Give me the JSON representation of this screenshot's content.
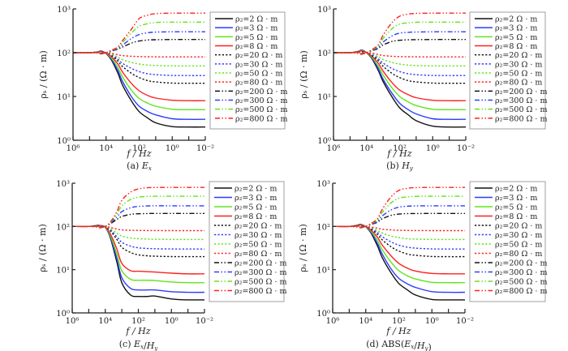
{
  "colors": {
    "black": "#111111",
    "blue": "#2a3cff",
    "green": "#5fe51c",
    "red": "#ff2020"
  },
  "shared": {
    "type": "line",
    "x_scale": "log, reversed",
    "y_scale": "log",
    "xlim": [
      1000000,
      0.01
    ],
    "ylim": [
      1,
      1000
    ],
    "xlabel": "f / Hz",
    "ylabel": "ρₛ / (Ω · m)",
    "xtick_values": [
      1000000,
      10000,
      100,
      1,
      0.01
    ],
    "xtick_labels": [
      "10⁶",
      "10⁴",
      "10²",
      "10⁰",
      "10⁻²"
    ],
    "ytick_values": [
      1,
      10,
      100,
      1000
    ],
    "ytick_labels": [
      "10⁰",
      "10¹",
      "10²",
      "10³"
    ],
    "grid": false,
    "legend_placement": "right, outside",
    "x": [
      1000000,
      100000,
      30000,
      20000,
      10000,
      5000,
      2000,
      1000,
      300,
      100,
      30,
      10,
      1,
      0.1,
      0.01
    ],
    "series_meta": [
      {
        "name": "ρ₂=2 Ω · m",
        "color": "black",
        "style": "solid"
      },
      {
        "name": "ρ₂=3 Ω · m",
        "color": "blue",
        "style": "solid"
      },
      {
        "name": "ρ₂=5 Ω · m",
        "color": "green",
        "style": "solid"
      },
      {
        "name": "ρ₂=8 Ω · m",
        "color": "red",
        "style": "solid"
      },
      {
        "name": "ρ₂=20 Ω · m",
        "color": "black",
        "style": "dotted"
      },
      {
        "name": "ρ₂=30 Ω · m",
        "color": "blue",
        "style": "dotted"
      },
      {
        "name": "ρ₂=50 Ω · m",
        "color": "green",
        "style": "dotted"
      },
      {
        "name": "ρ₂=80 Ω · m",
        "color": "red",
        "style": "dotted"
      },
      {
        "name": "ρ₂=200 Ω · m",
        "color": "black",
        "style": "dash-dot-dot"
      },
      {
        "name": "ρ₂=300 Ω · m",
        "color": "blue",
        "style": "dash-dot-dot"
      },
      {
        "name": "ρ₂=500 Ω · m",
        "color": "green",
        "style": "dash-dot-dot"
      },
      {
        "name": "ρ₂=800 Ω · m",
        "color": "red",
        "style": "dash-dot-dot"
      }
    ]
  },
  "chart_data": [
    {
      "type": "line",
      "caption": "(a) Ex",
      "series": [
        {
          "name": "ρ₂=2 Ω · m",
          "values": [
            100,
            100,
            105,
            110,
            95,
            70,
            35,
            18,
            8,
            4.5,
            3.2,
            2.5,
            2.05,
            2,
            2
          ]
        },
        {
          "name": "ρ₂=3 Ω · m",
          "values": [
            100,
            100,
            105,
            110,
            96,
            73,
            40,
            22,
            10,
            6,
            4.5,
            3.8,
            3.1,
            3,
            3
          ]
        },
        {
          "name": "ρ₂=5 Ω · m",
          "values": [
            100,
            100,
            104,
            108,
            97,
            77,
            47,
            28,
            14,
            9,
            7,
            6,
            5.1,
            5,
            5
          ]
        },
        {
          "name": "ρ₂=8 Ω · m",
          "values": [
            100,
            100,
            103,
            106,
            98,
            82,
            56,
            36,
            20,
            13.5,
            10.5,
            9.2,
            8.2,
            8,
            8
          ]
        },
        {
          "name": "ρ₂=20 Ω · m",
          "values": [
            100,
            100,
            102,
            104,
            99,
            88,
            65,
            48,
            34,
            27,
            23,
            21.5,
            20.2,
            20,
            20
          ]
        },
        {
          "name": "ρ₂=30 Ω · m",
          "values": [
            100,
            100,
            102,
            103,
            99,
            90,
            72,
            57,
            44,
            37,
            33,
            31.5,
            30.2,
            30,
            30
          ]
        },
        {
          "name": "ρ₂=50 Ω · m",
          "values": [
            100,
            100,
            101,
            102,
            99,
            93,
            80,
            69,
            60,
            55,
            52,
            51,
            50,
            50,
            50
          ]
        },
        {
          "name": "ρ₂=80 Ω · m",
          "values": [
            100,
            100,
            100,
            101,
            100,
            97,
            90,
            86,
            83,
            81.5,
            80.7,
            80.3,
            80,
            80,
            80
          ]
        },
        {
          "name": "ρ₂=200 Ω · m",
          "values": [
            100,
            100,
            99,
            97,
            100,
            108,
            120,
            135,
            165,
            185,
            195,
            198,
            200,
            200,
            200
          ]
        },
        {
          "name": "ρ₂=300 Ω · m",
          "values": [
            100,
            100,
            99,
            96,
            100,
            110,
            125,
            150,
            210,
            260,
            285,
            295,
            300,
            300,
            300
          ]
        },
        {
          "name": "ρ₂=500 Ω · m",
          "values": [
            100,
            100,
            98,
            95,
            100,
            112,
            130,
            170,
            280,
            400,
            460,
            490,
            500,
            500,
            500
          ]
        },
        {
          "name": "ρ₂=800 Ω · m",
          "values": [
            100,
            100,
            98,
            94,
            100,
            113,
            135,
            190,
            340,
            600,
            720,
            780,
            800,
            800,
            800
          ]
        }
      ]
    },
    {
      "type": "line",
      "caption": "(b) Hy",
      "series": [
        {
          "name": "ρ₂=2 Ω · m",
          "values": [
            100,
            100,
            108,
            115,
            100,
            75,
            40,
            22,
            10,
            5.5,
            3.8,
            2.8,
            2.1,
            2,
            2
          ]
        },
        {
          "name": "ρ₂=3 Ω · m",
          "values": [
            100,
            100,
            108,
            114,
            100,
            77,
            44,
            25,
            12,
            7,
            5,
            4,
            3.1,
            3,
            3
          ]
        },
        {
          "name": "ρ₂=5 Ω · m",
          "values": [
            100,
            100,
            107,
            112,
            100,
            80,
            50,
            31,
            16,
            10,
            7.5,
            6.2,
            5.1,
            5,
            5
          ]
        },
        {
          "name": "ρ₂=8 Ω · m",
          "values": [
            100,
            100,
            106,
            110,
            100,
            84,
            58,
            38,
            21,
            14,
            11,
            9.4,
            8.2,
            8,
            8
          ]
        },
        {
          "name": "ρ₂=20 Ω · m",
          "values": [
            100,
            100,
            104,
            106,
            100,
            88,
            66,
            49,
            34,
            27,
            23,
            21.5,
            20.2,
            20,
            20
          ]
        },
        {
          "name": "ρ₂=30 Ω · m",
          "values": [
            100,
            100,
            103,
            104,
            100,
            91,
            73,
            58,
            44,
            37,
            33,
            31.5,
            30.2,
            30,
            30
          ]
        },
        {
          "name": "ρ₂=50 Ω · m",
          "values": [
            100,
            100,
            102,
            102,
            100,
            94,
            81,
            70,
            60,
            55,
            52,
            51,
            50,
            50,
            50
          ]
        },
        {
          "name": "ρ₂=80 Ω · m",
          "values": [
            100,
            100,
            101,
            101,
            100,
            98,
            91,
            86,
            83,
            81.5,
            80.7,
            80.3,
            80,
            80,
            80
          ]
        },
        {
          "name": "ρ₂=200 Ω · m",
          "values": [
            100,
            100,
            98,
            95,
            100,
            110,
            125,
            150,
            180,
            192,
            197,
            199,
            200,
            200,
            200
          ]
        },
        {
          "name": "ρ₂=300 Ω · m",
          "values": [
            100,
            100,
            97,
            94,
            100,
            112,
            130,
            175,
            240,
            280,
            292,
            297,
            300,
            300,
            300
          ]
        },
        {
          "name": "ρ₂=500 Ω · m",
          "values": [
            100,
            100,
            96,
            93,
            100,
            114,
            140,
            210,
            350,
            450,
            480,
            495,
            500,
            500,
            500
          ]
        },
        {
          "name": "ρ₂=800 Ω · m",
          "values": [
            100,
            100,
            96,
            92,
            100,
            116,
            150,
            250,
            480,
            680,
            760,
            790,
            800,
            800,
            800
          ]
        }
      ]
    },
    {
      "type": "line",
      "caption": "(c) Ex/Hy",
      "series": [
        {
          "name": "ρ₂=2 Ω · m",
          "values": [
            100,
            100,
            106,
            105,
            95,
            55,
            15,
            5,
            2.6,
            2.4,
            2.4,
            2.45,
            2.1,
            2,
            2
          ]
        },
        {
          "name": "ρ₂=3 Ω · m",
          "values": [
            100,
            100,
            106,
            105,
            96,
            58,
            18,
            6.5,
            3.7,
            3.4,
            3.4,
            3.4,
            3.1,
            3,
            3
          ]
        },
        {
          "name": "ρ₂=5 Ω · m",
          "values": [
            100,
            100,
            105,
            104,
            97,
            62,
            23,
            9.5,
            6,
            5.7,
            5.7,
            5.6,
            5.2,
            5,
            5
          ]
        },
        {
          "name": "ρ₂=8 Ω · m",
          "values": [
            100,
            100,
            104,
            103,
            98,
            68,
            30,
            14,
            9.5,
            9.2,
            9,
            8.8,
            8.3,
            8,
            8
          ]
        },
        {
          "name": "ρ₂=20 Ω · m",
          "values": [
            100,
            100,
            103,
            102,
            98,
            80,
            50,
            33,
            25,
            22,
            21,
            20.5,
            20.1,
            20,
            20
          ]
        },
        {
          "name": "ρ₂=30 Ω · m",
          "values": [
            100,
            100,
            102,
            102,
            99,
            84,
            58,
            43,
            35,
            32,
            31,
            30.5,
            30.1,
            30,
            30
          ]
        },
        {
          "name": "ρ₂=50 Ω · m",
          "values": [
            100,
            100,
            101,
            101,
            99,
            89,
            70,
            60,
            54,
            52,
            51,
            50.5,
            50,
            50,
            50
          ]
        },
        {
          "name": "ρ₂=80 Ω · m",
          "values": [
            100,
            100,
            100,
            100,
            100,
            95,
            87,
            83,
            81.5,
            80.8,
            80.4,
            80.2,
            80,
            80,
            80
          ]
        },
        {
          "name": "ρ₂=200 Ω · m",
          "values": [
            100,
            100,
            98,
            96,
            100,
            115,
            145,
            170,
            190,
            196,
            199,
            200,
            200,
            200,
            200
          ]
        },
        {
          "name": "ρ₂=300 Ω · m",
          "values": [
            100,
            100,
            98,
            95,
            100,
            118,
            165,
            220,
            270,
            290,
            297,
            300,
            300,
            300,
            300
          ]
        },
        {
          "name": "ρ₂=500 Ω · m",
          "values": [
            100,
            100,
            97,
            94,
            100,
            122,
            190,
            300,
            420,
            475,
            492,
            498,
            500,
            500,
            500
          ]
        },
        {
          "name": "ρ₂=800 Ω · m",
          "values": [
            100,
            100,
            96,
            93,
            100,
            125,
            220,
            400,
            620,
            740,
            785,
            795,
            800,
            800,
            800
          ]
        }
      ]
    },
    {
      "type": "line",
      "caption": "(d) ABS(Ex/Hy)",
      "series": [
        {
          "name": "ρ₂=2 Ω · m",
          "values": [
            100,
            100,
            108,
            112,
            98,
            72,
            36,
            19,
            8.5,
            4.8,
            3.4,
            2.6,
            2.05,
            2,
            2
          ]
        },
        {
          "name": "ρ₂=3 Ω · m",
          "values": [
            100,
            100,
            108,
            111,
            98,
            75,
            41,
            23,
            10.5,
            6.3,
            4.7,
            3.9,
            3.1,
            3,
            3
          ]
        },
        {
          "name": "ρ₂=5 Ω · m",
          "values": [
            100,
            100,
            107,
            110,
            98,
            79,
            48,
            29,
            15,
            9.5,
            7.2,
            6.1,
            5.1,
            5,
            5
          ]
        },
        {
          "name": "ρ₂=8 Ω · m",
          "values": [
            100,
            100,
            106,
            108,
            99,
            83,
            57,
            37,
            21,
            14,
            10.8,
            9.3,
            8.2,
            8,
            8
          ]
        },
        {
          "name": "ρ₂=20 Ω · m",
          "values": [
            100,
            100,
            104,
            105,
            99,
            88,
            66,
            49,
            34,
            27,
            23,
            21.5,
            20.2,
            20,
            20
          ]
        },
        {
          "name": "ρ₂=30 Ω · m",
          "values": [
            100,
            100,
            103,
            104,
            99,
            91,
            73,
            58,
            44,
            37,
            33,
            31.5,
            30.2,
            30,
            30
          ]
        },
        {
          "name": "ρ₂=50 Ω · m",
          "values": [
            100,
            100,
            102,
            102,
            99,
            94,
            81,
            70,
            60,
            55,
            52,
            51,
            50,
            50,
            50
          ]
        },
        {
          "name": "ρ₂=80 Ω · m",
          "values": [
            100,
            100,
            101,
            101,
            100,
            97,
            91,
            86,
            83,
            81.5,
            80.7,
            80.3,
            80,
            80,
            80
          ]
        },
        {
          "name": "ρ₂=200 Ω · m",
          "values": [
            100,
            100,
            98,
            96,
            100,
            110,
            125,
            150,
            180,
            193,
            198,
            199,
            200,
            200,
            200
          ]
        },
        {
          "name": "ρ₂=300 Ω · m",
          "values": [
            100,
            100,
            97,
            95,
            100,
            112,
            130,
            175,
            240,
            280,
            293,
            298,
            300,
            300,
            300
          ]
        },
        {
          "name": "ρ₂=500 Ω · m",
          "values": [
            100,
            100,
            97,
            94,
            100,
            114,
            140,
            210,
            350,
            450,
            482,
            495,
            500,
            500,
            500
          ]
        },
        {
          "name": "ρ₂=800 Ω · m",
          "values": [
            100,
            100,
            96,
            93,
            100,
            116,
            150,
            250,
            480,
            680,
            762,
            790,
            800,
            800,
            800
          ]
        }
      ]
    }
  ]
}
